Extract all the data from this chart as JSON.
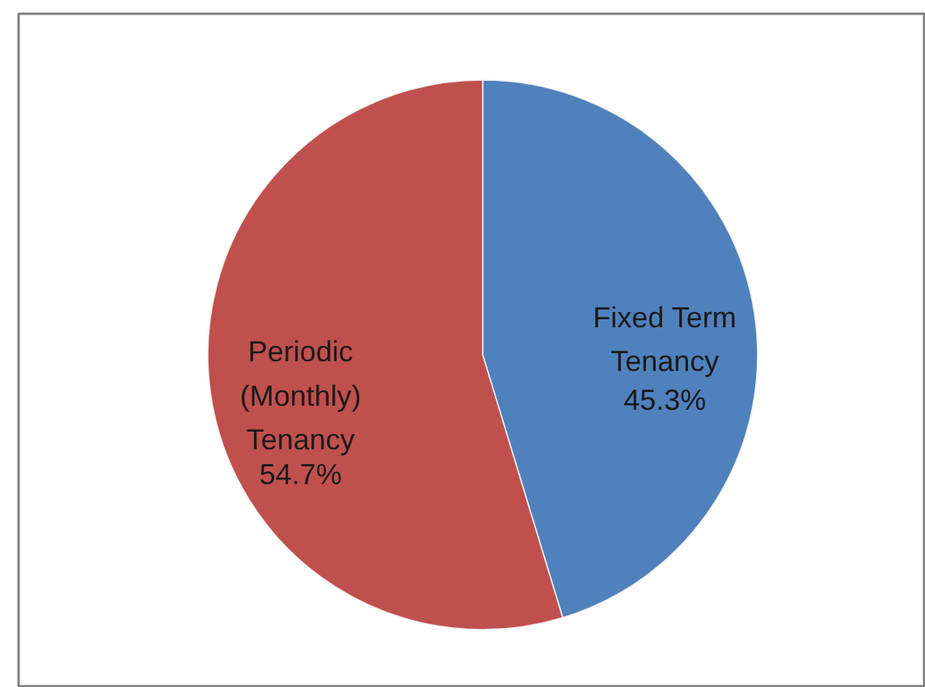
{
  "chart_data": {
    "type": "pie",
    "categories": [
      "Fixed Term Tenancy",
      "Periodic (Monthly) Tenancy"
    ],
    "values": [
      45.3,
      54.7
    ],
    "colors": [
      "#4f81bd",
      "#c0504d"
    ],
    "value_labels": [
      "45.3%",
      "54.7%"
    ]
  }
}
